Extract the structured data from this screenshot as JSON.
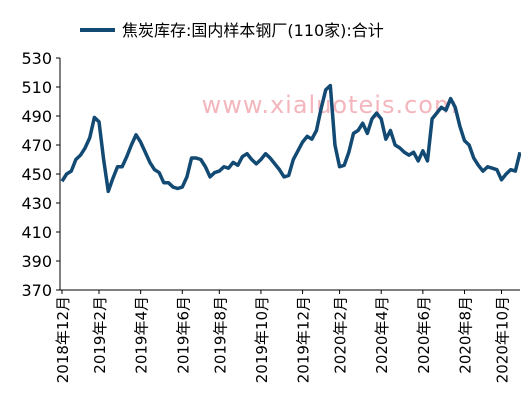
{
  "chart_data": {
    "type": "line",
    "title": "焦炭库存:国内样本钢厂(110家):合计",
    "watermark": "www.xialuotejs.com",
    "categories": [
      "2018年12月",
      null,
      null,
      null,
      null,
      null,
      null,
      null,
      "2019年2月",
      null,
      null,
      null,
      null,
      null,
      null,
      null,
      null,
      "2019年4月",
      null,
      null,
      null,
      null,
      null,
      null,
      null,
      null,
      "2019年6月",
      null,
      null,
      null,
      null,
      null,
      null,
      null,
      "2019年8月",
      null,
      null,
      null,
      null,
      null,
      null,
      null,
      null,
      "2019年10月",
      null,
      null,
      null,
      null,
      null,
      null,
      null,
      null,
      "2019年12月",
      null,
      null,
      null,
      null,
      null,
      null,
      null,
      "2020年2月",
      null,
      null,
      null,
      null,
      null,
      null,
      null,
      null,
      "2020年4月",
      null,
      null,
      null,
      null,
      null,
      null,
      null,
      null,
      "2020年6月",
      null,
      null,
      null,
      null,
      null,
      null,
      null,
      null,
      "2020年8月",
      null,
      null,
      null,
      null,
      null,
      null,
      null,
      "2020年10月",
      null,
      null,
      null,
      null
    ],
    "series": [
      {
        "name": "焦炭库存:国内样本钢厂(110家):合计",
        "color": "#124a73",
        "values": [
          445,
          450,
          452,
          460,
          463,
          468,
          475,
          489,
          486,
          460,
          438,
          447,
          455,
          455,
          462,
          470,
          477,
          472,
          465,
          458,
          453,
          451,
          444,
          444,
          441,
          440,
          441,
          448,
          461,
          461,
          460,
          455,
          448,
          451,
          452,
          455,
          454,
          458,
          456,
          462,
          464,
          460,
          457,
          460,
          464,
          461,
          457,
          453,
          448,
          449,
          460,
          466,
          472,
          476,
          474,
          480,
          495,
          508,
          511,
          470,
          455,
          456,
          465,
          478,
          480,
          485,
          478,
          488,
          492,
          488,
          474,
          480,
          470,
          468,
          465,
          463,
          465,
          459,
          466,
          459,
          488,
          492,
          496,
          494,
          502,
          496,
          483,
          473,
          470,
          461,
          456,
          452,
          455,
          454,
          453,
          446,
          450,
          453,
          452,
          465
        ]
      }
    ],
    "ylim": [
      370,
      530
    ],
    "yticks": [
      370,
      390,
      410,
      430,
      450,
      470,
      490,
      510,
      530
    ]
  }
}
